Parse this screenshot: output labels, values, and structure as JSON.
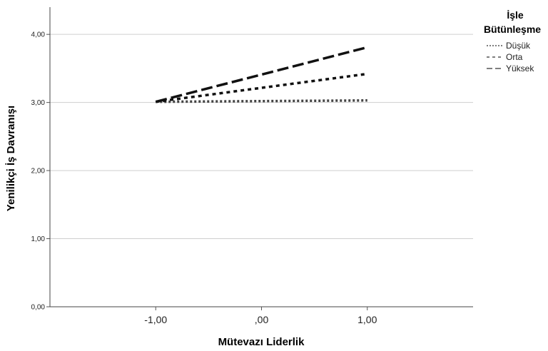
{
  "chart_data": {
    "type": "line",
    "xlabel": "Mütevazı Liderlik",
    "ylabel": "Yenilikçi İş Davranışı",
    "x": [
      -1,
      1
    ],
    "x_tick_values": [
      -1,
      0,
      1
    ],
    "x_tick_labels": [
      "-1,00",
      ",00",
      "1,00"
    ],
    "xlim": [
      -2,
      2
    ],
    "ylim": [
      0,
      4.4
    ],
    "y_tick_values": [
      0,
      1,
      2,
      3,
      4
    ],
    "y_tick_labels": [
      "0,00",
      "1,00",
      "2,00",
      "3,00",
      "4,00"
    ],
    "grid": true,
    "legend": {
      "title_lines": [
        "İşle",
        "Bütünleşme"
      ],
      "position": "top-right"
    },
    "series": [
      {
        "name": "Düşük",
        "values": [
          3.01,
          3.03
        ],
        "dash": "3,3",
        "color": "#444444"
      },
      {
        "name": "Orta",
        "values": [
          3.01,
          3.42
        ],
        "dash": "5,5",
        "color": "#111111"
      },
      {
        "name": "Yüksek",
        "values": [
          3.01,
          3.81
        ],
        "dash": "16,6",
        "color": "#111111"
      }
    ]
  }
}
